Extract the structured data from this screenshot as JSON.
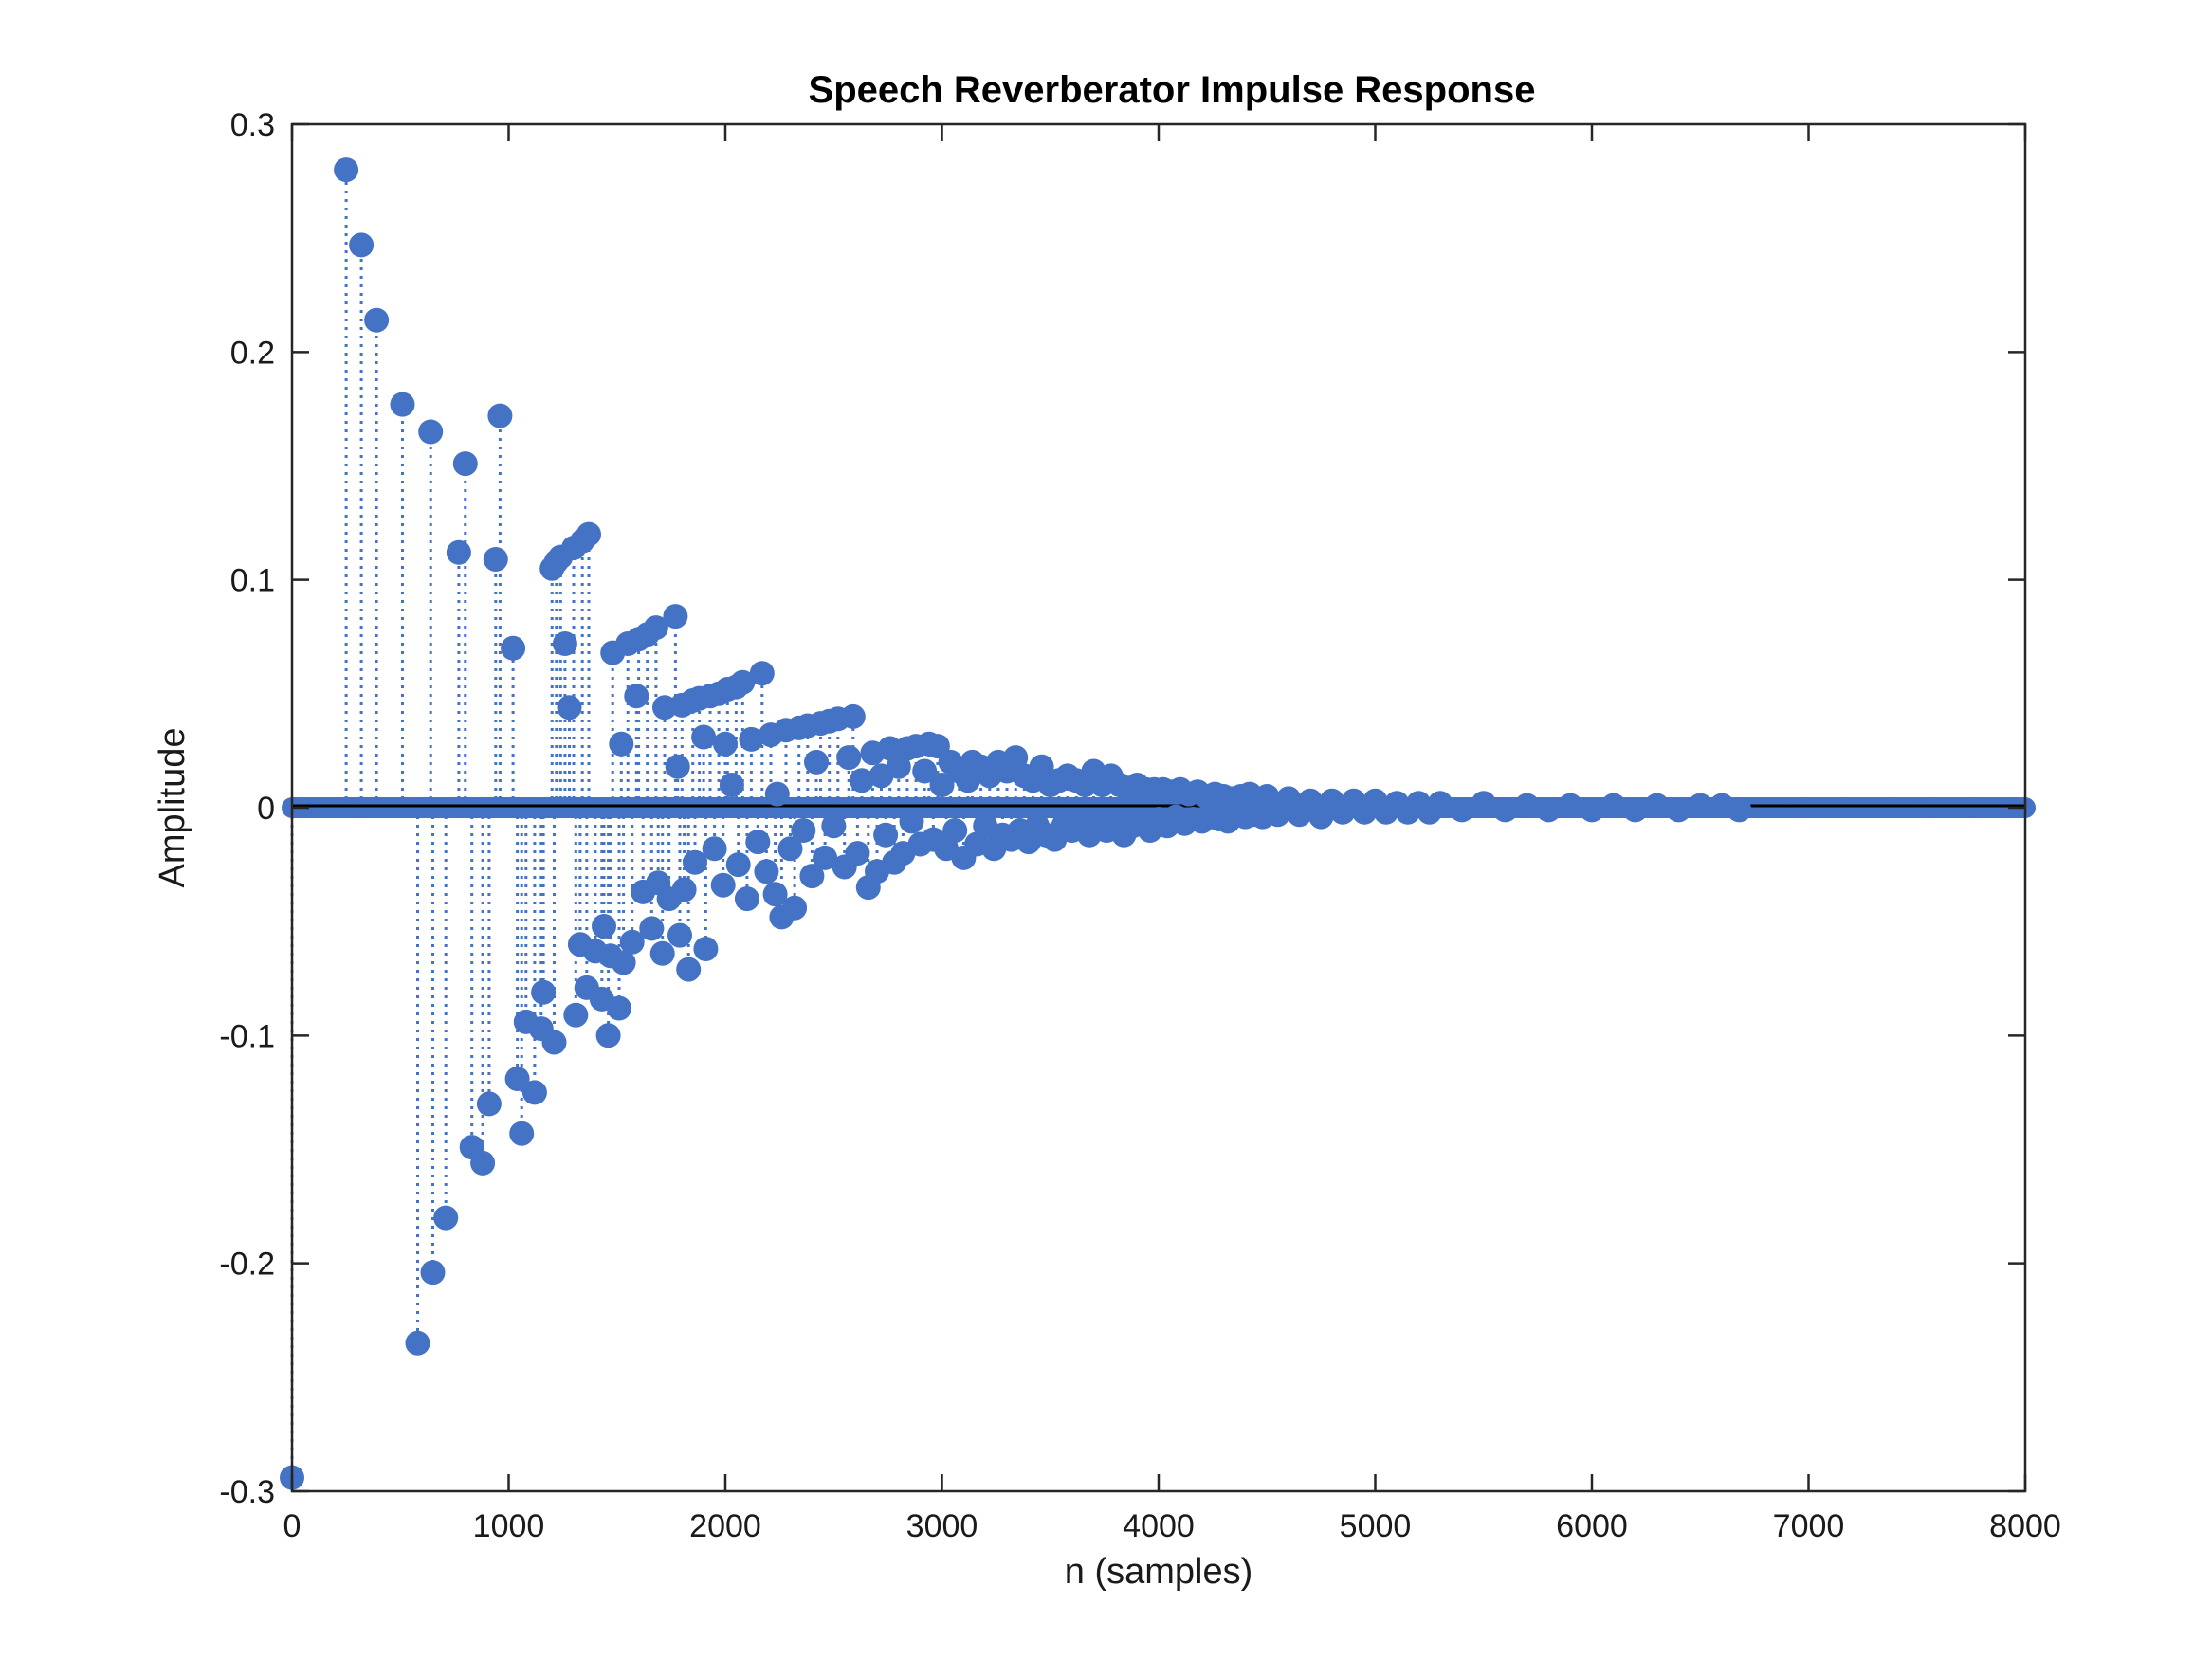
{
  "chart_data": {
    "type": "stem",
    "title": "Speech Reverberator Impulse Response",
    "xlabel": "n (samples)",
    "ylabel": "Amplitude",
    "xlim": [
      0,
      8000
    ],
    "ylim": [
      -0.3,
      0.3
    ],
    "xticks": [
      0,
      1000,
      2000,
      3000,
      4000,
      5000,
      6000,
      7000,
      8000
    ],
    "xtick_labels": [
      "0",
      "1000",
      "2000",
      "3000",
      "4000",
      "5000",
      "6000",
      "7000",
      "8000"
    ],
    "yticks": [
      -0.3,
      -0.2,
      -0.1,
      0,
      0.1,
      0.2,
      0.3
    ],
    "ytick_labels": [
      "-0.3",
      "-0.2",
      "-0.1",
      "0",
      "0.1",
      "0.2",
      "0.3"
    ],
    "grid": false,
    "colors": {
      "series": "#4472C4",
      "baseline": "#000000",
      "axes": "#262626"
    },
    "series": [
      {
        "points": [
          [
            0,
            -0.294
          ],
          [
            250,
            0.28
          ],
          [
            320,
            0.247
          ],
          [
            390,
            0.214
          ],
          [
            510,
            0.177
          ],
          [
            580,
            -0.235
          ],
          [
            640,
            0.165
          ],
          [
            650,
            -0.204
          ],
          [
            710,
            -0.18
          ],
          [
            770,
            0.112
          ],
          [
            800,
            0.151
          ],
          [
            830,
            -0.149
          ],
          [
            880,
            -0.156
          ],
          [
            910,
            -0.13
          ],
          [
            940,
            0.109
          ],
          [
            960,
            0.172
          ],
          [
            1020,
            0.07
          ],
          [
            1040,
            -0.119
          ],
          [
            1060,
            -0.143
          ],
          [
            1080,
            -0.094
          ],
          [
            1120,
            -0.125
          ],
          [
            1150,
            -0.097
          ],
          [
            1160,
            -0.081
          ],
          [
            1200,
            0.105
          ],
          [
            1210,
            -0.103
          ],
          [
            1220,
            0.108
          ],
          [
            1240,
            0.11
          ],
          [
            1260,
            0.072
          ],
          [
            1280,
            0.044
          ],
          [
            1300,
            0.114
          ],
          [
            1310,
            -0.091
          ],
          [
            1330,
            -0.06
          ],
          [
            1340,
            0.117
          ],
          [
            1360,
            -0.079
          ],
          [
            1370,
            0.12
          ],
          [
            1400,
            -0.063
          ],
          [
            1430,
            -0.084
          ],
          [
            1440,
            -0.052
          ],
          [
            1460,
            -0.1
          ],
          [
            1470,
            -0.065
          ],
          [
            1480,
            0.068
          ],
          [
            1510,
            -0.088
          ],
          [
            1520,
            0.028
          ],
          [
            1530,
            -0.068
          ],
          [
            1550,
            0.072
          ],
          [
            1570,
            -0.059
          ],
          [
            1590,
            0.049
          ],
          [
            1600,
            0.074
          ],
          [
            1620,
            -0.037
          ],
          [
            1640,
            0.076
          ],
          [
            1660,
            -0.053
          ],
          [
            1680,
            0.079
          ],
          [
            1690,
            -0.033
          ],
          [
            1710,
            -0.064
          ],
          [
            1720,
            0.044
          ],
          [
            1740,
            -0.04
          ],
          [
            1770,
            0.084
          ],
          [
            1780,
            0.018
          ],
          [
            1790,
            -0.056
          ],
          [
            1800,
            0.045
          ],
          [
            1810,
            -0.036
          ],
          [
            1830,
            -0.071
          ],
          [
            1850,
            0.047
          ],
          [
            1860,
            -0.024
          ],
          [
            1880,
            0.048
          ],
          [
            1900,
            0.031
          ],
          [
            1910,
            -0.062
          ],
          [
            1930,
            0.049
          ],
          [
            1950,
            -0.018
          ],
          [
            1970,
            0.05
          ],
          [
            1990,
            -0.034
          ],
          [
            2000,
            0.028
          ],
          [
            2010,
            0.052
          ],
          [
            2030,
            0.01
          ],
          [
            2050,
            0.053
          ],
          [
            2060,
            -0.025
          ],
          [
            2080,
            0.055
          ],
          [
            2100,
            -0.04
          ],
          [
            2120,
            0.03
          ],
          [
            2150,
            -0.015
          ],
          [
            2170,
            0.059
          ],
          [
            2190,
            -0.028
          ],
          [
            2210,
            0.032
          ],
          [
            2230,
            -0.038
          ],
          [
            2240,
            0.006
          ],
          [
            2260,
            -0.048
          ],
          [
            2280,
            0.034
          ],
          [
            2300,
            -0.018
          ],
          [
            2320,
            -0.044
          ],
          [
            2340,
            0.035
          ],
          [
            2360,
            -0.01
          ],
          [
            2380,
            0.036
          ],
          [
            2400,
            -0.03
          ],
          [
            2420,
            0.02
          ],
          [
            2440,
            0.037
          ],
          [
            2460,
            -0.022
          ],
          [
            2480,
            0.038
          ],
          [
            2500,
            -0.008
          ],
          [
            2520,
            0.039
          ],
          [
            2550,
            -0.026
          ],
          [
            2570,
            0.022
          ],
          [
            2590,
            0.04
          ],
          [
            2610,
            -0.02
          ],
          [
            2630,
            0.012
          ],
          [
            2660,
            -0.035
          ],
          [
            2680,
            0.024
          ],
          [
            2700,
            -0.028
          ],
          [
            2720,
            0.014
          ],
          [
            2740,
            -0.012
          ],
          [
            2760,
            0.026
          ],
          [
            2780,
            -0.024
          ],
          [
            2800,
            0.018
          ],
          [
            2820,
            -0.02
          ],
          [
            2840,
            0.026
          ],
          [
            2860,
            -0.006
          ],
          [
            2880,
            0.027
          ],
          [
            2900,
            -0.016
          ],
          [
            2920,
            0.016
          ],
          [
            2940,
            0.028
          ],
          [
            2960,
            -0.014
          ],
          [
            2980,
            0.027
          ],
          [
            3000,
            0.01
          ],
          [
            3020,
            -0.018
          ],
          [
            3040,
            0.02
          ],
          [
            3060,
            -0.01
          ],
          [
            3080,
            0.016
          ],
          [
            3100,
            -0.022
          ],
          [
            3120,
            0.012
          ],
          [
            3140,
            0.02
          ],
          [
            3160,
            -0.016
          ],
          [
            3180,
            0.018
          ],
          [
            3200,
            -0.008
          ],
          [
            3220,
            0.014
          ],
          [
            3240,
            -0.018
          ],
          [
            3260,
            0.02
          ],
          [
            3280,
            -0.012
          ],
          [
            3300,
            0.016
          ],
          [
            3320,
            -0.014
          ],
          [
            3340,
            0.022
          ],
          [
            3360,
            -0.01
          ],
          [
            3380,
            0.014
          ],
          [
            3400,
            -0.015
          ],
          [
            3420,
            0.012
          ],
          [
            3440,
            -0.008
          ],
          [
            3460,
            0.018
          ],
          [
            3480,
            -0.012
          ],
          [
            3500,
            0.01
          ],
          [
            3520,
            -0.014
          ],
          [
            3540,
            0.012
          ],
          [
            3560,
            -0.008
          ],
          [
            3580,
            0.014
          ],
          [
            3600,
            -0.01
          ],
          [
            3620,
            0.012
          ],
          [
            3640,
            -0.006
          ],
          [
            3660,
            0.01
          ],
          [
            3680,
            -0.012
          ],
          [
            3700,
            0.016
          ],
          [
            3720,
            -0.008
          ],
          [
            3740,
            0.01
          ],
          [
            3760,
            -0.01
          ],
          [
            3780,
            0.014
          ],
          [
            3800,
            -0.006
          ],
          [
            3820,
            0.01
          ],
          [
            3840,
            -0.012
          ],
          [
            3860,
            0.008
          ],
          [
            3880,
            -0.008
          ],
          [
            3900,
            0.01
          ],
          [
            3920,
            -0.006
          ],
          [
            3940,
            0.008
          ],
          [
            3960,
            -0.01
          ],
          [
            3980,
            0.008
          ],
          [
            4000,
            -0.005
          ],
          [
            4020,
            0.008
          ],
          [
            4040,
            -0.008
          ],
          [
            4060,
            0.007
          ],
          [
            4080,
            -0.004
          ],
          [
            4100,
            0.008
          ],
          [
            4120,
            -0.007
          ],
          [
            4140,
            0.006
          ],
          [
            4160,
            -0.005
          ],
          [
            4180,
            0.007
          ],
          [
            4200,
            -0.006
          ],
          [
            4220,
            0.005
          ],
          [
            4240,
            -0.004
          ],
          [
            4260,
            0.006
          ],
          [
            4280,
            -0.005
          ],
          [
            4300,
            0.005
          ],
          [
            4320,
            -0.006
          ],
          [
            4340,
            0.004
          ],
          [
            4360,
            -0.003
          ],
          [
            4380,
            0.005
          ],
          [
            4400,
            -0.004
          ],
          [
            4420,
            0.006
          ],
          [
            4440,
            -0.003
          ],
          [
            4460,
            0.004
          ],
          [
            4480,
            -0.004
          ],
          [
            4500,
            0.005
          ],
          [
            4550,
            -0.003
          ],
          [
            4600,
            0.004
          ],
          [
            4650,
            -0.003
          ],
          [
            4700,
            0.003
          ],
          [
            4750,
            -0.004
          ],
          [
            4800,
            0.003
          ],
          [
            4850,
            -0.002
          ],
          [
            4900,
            0.003
          ],
          [
            4950,
            -0.002
          ],
          [
            5000,
            0.003
          ],
          [
            5050,
            -0.002
          ],
          [
            5100,
            0.002
          ],
          [
            5150,
            -0.002
          ],
          [
            5200,
            0.002
          ],
          [
            5250,
            -0.002
          ],
          [
            5300,
            0.002
          ],
          [
            5400,
            -0.001
          ],
          [
            5500,
            0.002
          ],
          [
            5600,
            -0.001
          ],
          [
            5700,
            0.001
          ],
          [
            5800,
            -0.001
          ],
          [
            5900,
            0.001
          ],
          [
            6000,
            -0.001
          ],
          [
            6100,
            0.001
          ],
          [
            6200,
            -0.001
          ],
          [
            6300,
            0.001
          ],
          [
            6400,
            -0.001
          ],
          [
            6500,
            0.001
          ],
          [
            6600,
            0.001
          ],
          [
            6680,
            -0.001
          ]
        ]
      }
    ]
  }
}
